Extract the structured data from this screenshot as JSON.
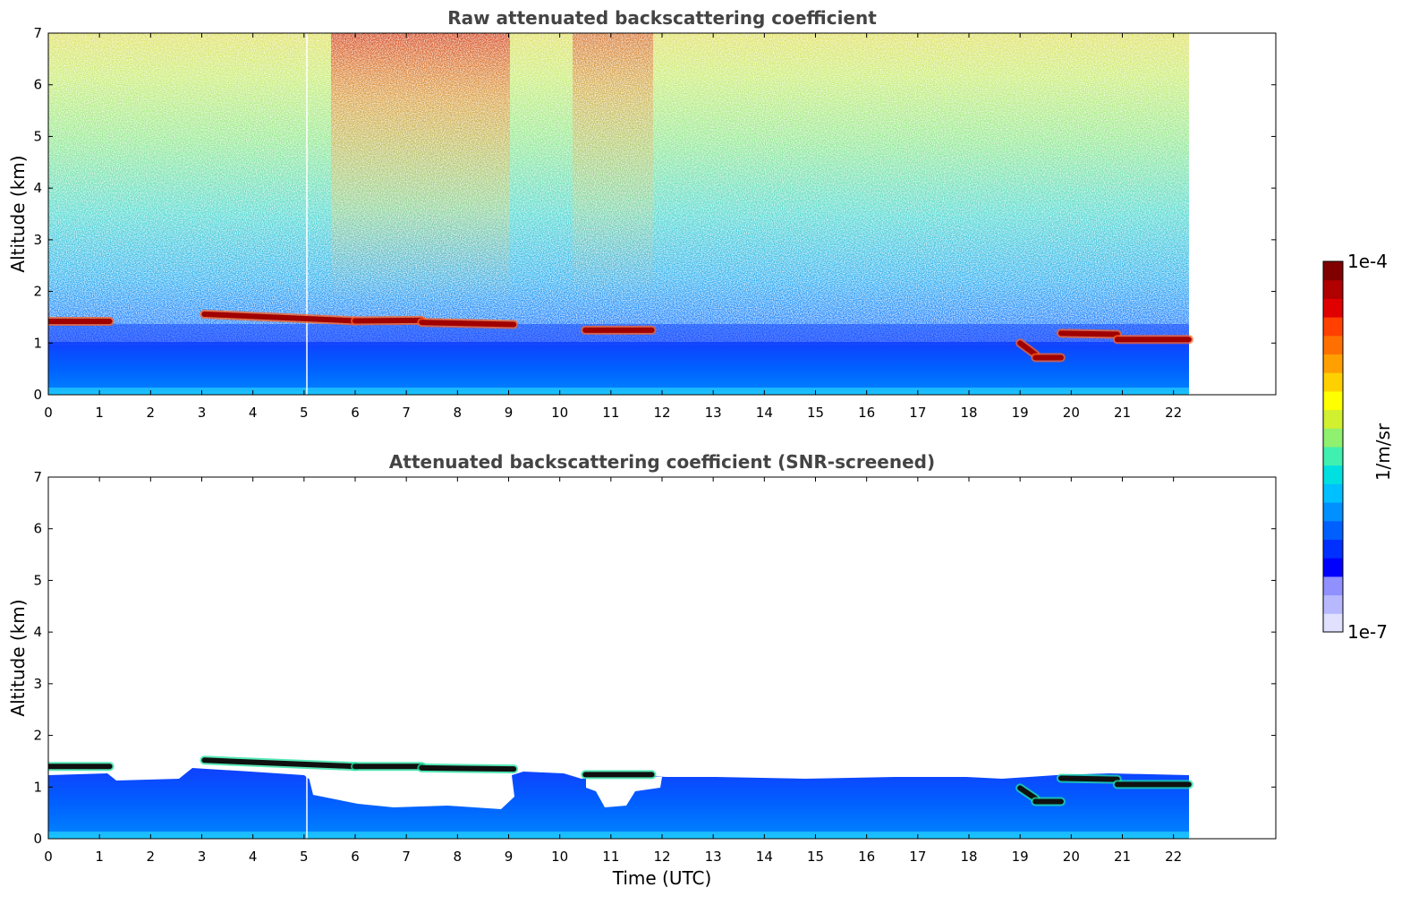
{
  "chart_data": [
    {
      "type": "heatmap",
      "title": "Raw attenuated backscattering coefficient",
      "xlabel": "",
      "ylabel": "Altitude (km)",
      "xlim": [
        0,
        24
      ],
      "ylim": [
        0,
        7
      ],
      "xticks": [
        0,
        1,
        2,
        3,
        4,
        5,
        6,
        7,
        8,
        9,
        10,
        11,
        12,
        13,
        14,
        15,
        16,
        17,
        18,
        19,
        20,
        21,
        22
      ],
      "yticks": [
        0,
        1,
        2,
        3,
        4,
        5,
        6,
        7
      ],
      "data_end_time": 22.3,
      "noise_background": true,
      "cloud_layers": [
        {
          "t0": 0.0,
          "t1": 1.2,
          "alt": [
            1.42,
            1.42
          ]
        },
        {
          "t0": 3.05,
          "t1": 6.0,
          "alt": [
            1.56,
            1.43
          ]
        },
        {
          "t0": 6.0,
          "t1": 7.3,
          "alt": [
            1.43,
            1.44
          ]
        },
        {
          "t0": 7.3,
          "t1": 9.1,
          "alt": [
            1.4,
            1.36
          ]
        },
        {
          "t0": 10.5,
          "t1": 11.8,
          "alt": [
            1.25,
            1.25
          ]
        },
        {
          "t0": 19.0,
          "t1": 19.3,
          "alt": [
            1.0,
            0.78
          ]
        },
        {
          "t0": 19.3,
          "t1": 19.8,
          "alt": [
            0.72,
            0.72
          ]
        },
        {
          "t0": 19.8,
          "t1": 20.9,
          "alt": [
            1.19,
            1.17
          ]
        },
        {
          "t0": 20.9,
          "t1": 22.3,
          "alt": [
            1.07,
            1.07
          ]
        }
      ]
    },
    {
      "type": "heatmap",
      "title": "Attenuated backscattering coefficient (SNR-screened)",
      "xlabel": "Time (UTC)",
      "ylabel": "Altitude (km)",
      "xlim": [
        0,
        24
      ],
      "ylim": [
        0,
        7
      ],
      "xticks": [
        0,
        1,
        2,
        3,
        4,
        5,
        6,
        7,
        8,
        9,
        10,
        11,
        12,
        13,
        14,
        15,
        16,
        17,
        18,
        19,
        20,
        21,
        22
      ],
      "yticks": [
        0,
        1,
        2,
        3,
        4,
        5,
        6,
        7
      ],
      "data_end_time": 22.3,
      "noise_background": false,
      "cloud_layers": [
        {
          "t0": 0.0,
          "t1": 1.2,
          "alt": [
            1.4,
            1.4
          ]
        },
        {
          "t0": 3.05,
          "t1": 6.0,
          "alt": [
            1.52,
            1.4
          ]
        },
        {
          "t0": 6.0,
          "t1": 7.3,
          "alt": [
            1.4,
            1.4
          ]
        },
        {
          "t0": 7.3,
          "t1": 9.1,
          "alt": [
            1.37,
            1.35
          ]
        },
        {
          "t0": 10.5,
          "t1": 11.8,
          "alt": [
            1.24,
            1.24
          ]
        },
        {
          "t0": 19.0,
          "t1": 19.3,
          "alt": [
            0.98,
            0.78
          ]
        },
        {
          "t0": 19.3,
          "t1": 19.8,
          "alt": [
            0.72,
            0.72
          ]
        },
        {
          "t0": 19.8,
          "t1": 20.9,
          "alt": [
            1.17,
            1.15
          ]
        },
        {
          "t0": 20.9,
          "t1": 22.3,
          "alt": [
            1.05,
            1.05
          ]
        }
      ]
    }
  ],
  "colorbar": {
    "label": "1/m/sr",
    "min_label": "1e-7",
    "max_label": "1e-4",
    "colors": [
      "#e0e0ff",
      "#b8b8ff",
      "#9090ff",
      "#0000ff",
      "#0030ff",
      "#0060ff",
      "#0090ff",
      "#00c0ff",
      "#00e0e0",
      "#40f0b0",
      "#90f070",
      "#d0f030",
      "#ffff00",
      "#ffd000",
      "#ffa000",
      "#ff7000",
      "#ff4000",
      "#e00000",
      "#b00000",
      "#800000"
    ]
  }
}
